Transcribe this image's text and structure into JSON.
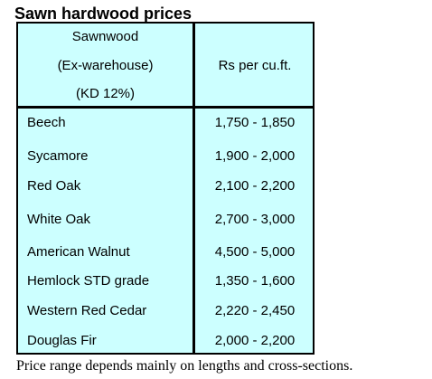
{
  "title": "Sawn hardwood prices",
  "table": {
    "header": {
      "left_lines": [
        "Sawnwood",
        "(Ex-warehouse)",
        "(KD 12%)"
      ],
      "right": "Rs per cu.ft."
    },
    "rows": [
      {
        "name": "Beech",
        "price": "1,750 - 1,850"
      },
      {
        "name": "Sycamore",
        "price": "1,900 - 2,000"
      },
      {
        "name": "Red Oak",
        "price": "2,100 - 2,200"
      },
      {
        "name": "White Oak",
        "price": "2,700 - 3,000"
      },
      {
        "name": "American Walnut",
        "price": "4,500 - 5,000"
      },
      {
        "name": "Hemlock STD grade",
        "price": "1,350 - 1,600"
      },
      {
        "name": "Western Red Cedar",
        "price": "2,220 - 2,450"
      },
      {
        "name": "Douglas Fir",
        "price": "2,000 - 2,200"
      }
    ]
  },
  "footnote": "Price range depends mainly on lengths and cross-sections.",
  "colors": {
    "table_background": "#ccffff",
    "border": "#000000"
  }
}
